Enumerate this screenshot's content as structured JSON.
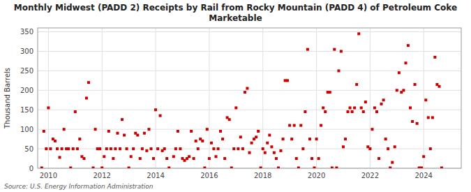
{
  "chart_data": {
    "type": "scatter",
    "title": "Monthly Midwest (PADD 2) Receipts by Rail from Rocky Mountain (PADD 4) of Petroleum Coke\nMarketable",
    "y_label": "Thousand Barrels",
    "annotations": [
      "Source: U.S. Energy Information Administration"
    ],
    "color": "#cc0000",
    "marker": "square",
    "grid": true,
    "xlim": [
      2009.6,
      2025.4
    ],
    "xticks": [
      2010,
      2012,
      2014,
      2016,
      2018,
      2020,
      2022,
      2024
    ],
    "ylim": [
      0,
      360
    ],
    "yticks": [
      0,
      50,
      100,
      150,
      200,
      250,
      300,
      350
    ],
    "x": [
      2009.75,
      2009.83,
      2009.92,
      2010.0,
      2010.08,
      2010.17,
      2010.25,
      2010.33,
      2010.42,
      2010.5,
      2010.58,
      2010.67,
      2010.75,
      2010.83,
      2010.92,
      2011.0,
      2011.08,
      2011.17,
      2011.25,
      2011.33,
      2011.42,
      2011.5,
      2011.67,
      2011.75,
      2011.83,
      2011.92,
      2012.0,
      2012.08,
      2012.17,
      2012.25,
      2012.33,
      2012.42,
      2012.5,
      2012.58,
      2012.67,
      2012.75,
      2012.83,
      2012.92,
      2013.0,
      2013.08,
      2013.17,
      2013.25,
      2013.33,
      2013.42,
      2013.5,
      2013.58,
      2013.67,
      2013.75,
      2013.83,
      2013.92,
      2014.0,
      2014.08,
      2014.17,
      2014.25,
      2014.33,
      2014.42,
      2014.5,
      2014.67,
      2014.75,
      2014.83,
      2014.92,
      2015.0,
      2015.08,
      2015.17,
      2015.25,
      2015.33,
      2015.42,
      2015.5,
      2015.58,
      2015.67,
      2015.75,
      2015.83,
      2015.92,
      2016.0,
      2016.08,
      2016.17,
      2016.25,
      2016.33,
      2016.42,
      2016.5,
      2016.58,
      2016.67,
      2016.75,
      2016.83,
      2016.92,
      2017.0,
      2017.08,
      2017.17,
      2017.25,
      2017.33,
      2017.42,
      2017.5,
      2017.58,
      2017.67,
      2017.75,
      2017.83,
      2017.92,
      2018.0,
      2018.08,
      2018.17,
      2018.25,
      2018.33,
      2018.42,
      2018.5,
      2018.58,
      2018.67,
      2018.75,
      2018.83,
      2018.92,
      2019.0,
      2019.08,
      2019.17,
      2019.25,
      2019.33,
      2019.42,
      2019.5,
      2019.58,
      2019.67,
      2019.75,
      2019.83,
      2019.92,
      2020.0,
      2020.08,
      2020.17,
      2020.25,
      2020.33,
      2020.42,
      2020.5,
      2020.58,
      2020.67,
      2020.75,
      2020.83,
      2020.92,
      2021.0,
      2021.08,
      2021.17,
      2021.25,
      2021.33,
      2021.42,
      2021.5,
      2021.58,
      2021.67,
      2021.75,
      2021.83,
      2021.92,
      2022.0,
      2022.08,
      2022.17,
      2022.25,
      2022.33,
      2022.42,
      2022.5,
      2022.58,
      2022.67,
      2022.75,
      2022.83,
      2022.92,
      2023.0,
      2023.08,
      2023.17,
      2023.25,
      2023.33,
      2023.42,
      2023.5,
      2023.58,
      2023.67,
      2023.75,
      2023.83,
      2023.92,
      2024.0,
      2024.08,
      2024.17,
      2024.25,
      2024.33,
      2024.42,
      2024.5,
      2024.58,
      2024.67
    ],
    "values": [
      1,
      95,
      50,
      155,
      50,
      75,
      70,
      50,
      28,
      50,
      100,
      50,
      50,
      1,
      50,
      145,
      50,
      75,
      30,
      25,
      180,
      220,
      1,
      100,
      50,
      50,
      1,
      30,
      50,
      95,
      50,
      25,
      50,
      90,
      50,
      125,
      85,
      50,
      1,
      30,
      50,
      90,
      85,
      25,
      50,
      90,
      45,
      100,
      50,
      25,
      150,
      50,
      135,
      45,
      50,
      25,
      1,
      30,
      50,
      95,
      50,
      25,
      20,
      25,
      30,
      95,
      25,
      70,
      50,
      75,
      70,
      1,
      100,
      25,
      65,
      50,
      30,
      50,
      95,
      75,
      25,
      130,
      125,
      1,
      50,
      155,
      50,
      80,
      50,
      195,
      205,
      40,
      65,
      75,
      80,
      95,
      1,
      50,
      40,
      65,
      85,
      55,
      40,
      25,
      1,
      45,
      75,
      225,
      225,
      110,
      75,
      110,
      25,
      1,
      110,
      50,
      145,
      305,
      75,
      25,
      1,
      75,
      25,
      110,
      155,
      145,
      195,
      195,
      1,
      305,
      1,
      250,
      300,
      55,
      75,
      145,
      155,
      145,
      155,
      215,
      345,
      155,
      145,
      170,
      55,
      50,
      100,
      155,
      145,
      25,
      165,
      175,
      75,
      50,
      1,
      15,
      55,
      200,
      245,
      195,
      200,
      270,
      315,
      155,
      120,
      215,
      115,
      1,
      1,
      30,
      175,
      130,
      50,
      130,
      285,
      215,
      210,
      1
    ]
  }
}
